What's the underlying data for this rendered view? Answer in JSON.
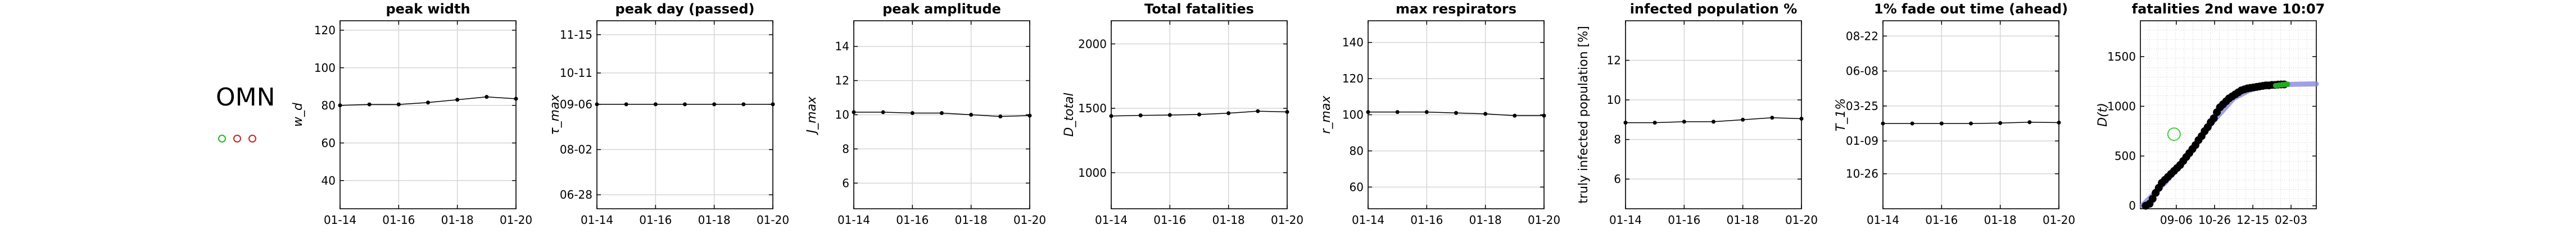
{
  "country": {
    "label": "OMN"
  },
  "indicator_dots": [
    {
      "color": "#22bb22"
    },
    {
      "color": "#cc2222"
    },
    {
      "color": "#cc2222"
    }
  ],
  "chart_data": [
    {
      "type": "line",
      "title": "peak width",
      "ylabel": "w_d",
      "x_ticks": [
        "01-14",
        "01-16",
        "01-18",
        "01-20"
      ],
      "x": [
        0,
        1,
        2,
        3,
        4,
        5,
        6
      ],
      "values": [
        80,
        80.5,
        80.5,
        81.5,
        83,
        84.5,
        83.5
      ],
      "ylim": [
        25,
        125
      ],
      "y_ticks": [
        {
          "v": 40,
          "label": "40"
        },
        {
          "v": 60,
          "label": "60"
        },
        {
          "v": 80,
          "label": "80"
        },
        {
          "v": 100,
          "label": "100"
        },
        {
          "v": 120,
          "label": "120"
        }
      ],
      "grid": true
    },
    {
      "type": "line",
      "title": "peak day (passed)",
      "ylabel": "τ_max",
      "x_ticks": [
        "01-14",
        "01-16",
        "01-18",
        "01-20"
      ],
      "x": [
        0,
        1,
        2,
        3,
        4,
        5,
        6
      ],
      "values": [
        2,
        2,
        2,
        2,
        2,
        2,
        2
      ],
      "ylim": [
        -13,
        14
      ],
      "y_ticks": [
        {
          "v": -11,
          "label": "06-28"
        },
        {
          "v": -4.5,
          "label": "08-02"
        },
        {
          "v": 2,
          "label": "09-06"
        },
        {
          "v": 6.5,
          "label": "10-11"
        },
        {
          "v": 12,
          "label": "11-15"
        }
      ],
      "grid": true
    },
    {
      "type": "line",
      "title": "peak amplitude",
      "ylabel": "J_max",
      "x_ticks": [
        "01-14",
        "01-16",
        "01-18",
        "01-20"
      ],
      "x": [
        0,
        1,
        2,
        3,
        4,
        5,
        6
      ],
      "values": [
        10.15,
        10.15,
        10.1,
        10.1,
        10.0,
        9.9,
        9.95
      ],
      "ylim": [
        4.5,
        15.5
      ],
      "y_ticks": [
        {
          "v": 6,
          "label": "6"
        },
        {
          "v": 8,
          "label": "8"
        },
        {
          "v": 10,
          "label": "10"
        },
        {
          "v": 12,
          "label": "12"
        },
        {
          "v": 14,
          "label": "14"
        }
      ],
      "grid": true
    },
    {
      "type": "line",
      "title": "Total fatalities",
      "ylabel": "D_total",
      "x_ticks": [
        "01-14",
        "01-16",
        "01-18",
        "01-20"
      ],
      "x": [
        0,
        1,
        2,
        3,
        4,
        5,
        6
      ],
      "values": [
        1440,
        1445,
        1448,
        1452,
        1462,
        1478,
        1472
      ],
      "ylim": [
        720,
        2180
      ],
      "y_ticks": [
        {
          "v": 1000,
          "label": "1000"
        },
        {
          "v": 1500,
          "label": "1500"
        },
        {
          "v": 2000,
          "label": "2000"
        }
      ],
      "grid": true
    },
    {
      "type": "line",
      "title": "max respirators",
      "ylabel": "r_max",
      "x_ticks": [
        "01-14",
        "01-16",
        "01-18",
        "01-20"
      ],
      "x": [
        0,
        1,
        2,
        3,
        4,
        5,
        6
      ],
      "values": [
        101.5,
        101.5,
        101.5,
        101,
        100.5,
        99.5,
        99.5
      ],
      "ylim": [
        48,
        152
      ],
      "y_ticks": [
        {
          "v": 60,
          "label": "60"
        },
        {
          "v": 80,
          "label": "80"
        },
        {
          "v": 100,
          "label": "100"
        },
        {
          "v": 120,
          "label": "120"
        },
        {
          "v": 140,
          "label": "140"
        }
      ],
      "grid": true
    },
    {
      "type": "line",
      "title": "infected population %",
      "ylabel": "truly infected population [%]",
      "x_ticks": [
        "01-14",
        "01-16",
        "01-18",
        "01-20"
      ],
      "x": [
        0,
        1,
        2,
        3,
        4,
        5,
        6
      ],
      "values": [
        8.85,
        8.85,
        8.9,
        8.9,
        9.0,
        9.1,
        9.05
      ],
      "ylim": [
        4.5,
        14
      ],
      "y_ticks": [
        {
          "v": 6,
          "label": "6"
        },
        {
          "v": 8,
          "label": "8"
        },
        {
          "v": 10,
          "label": "10"
        },
        {
          "v": 12,
          "label": "12"
        }
      ],
      "grid": true
    },
    {
      "type": "line",
      "title": "1% fade out time (ahead)",
      "ylabel": "T_1%",
      "x_ticks": [
        "01-14",
        "01-16",
        "01-18",
        "01-20"
      ],
      "x": [
        0,
        1,
        2,
        3,
        4,
        5,
        6
      ],
      "values": [
        -1.5,
        -1.5,
        -1.5,
        -1.5,
        -1.4,
        -1.2,
        -1.3
      ],
      "ylim": [
        -21,
        22
      ],
      "y_ticks": [
        {
          "v": -13,
          "label": "10-26"
        },
        {
          "v": -5.5,
          "label": "01-09"
        },
        {
          "v": 2.5,
          "label": "03-25"
        },
        {
          "v": 10.5,
          "label": "06-08"
        },
        {
          "v": 18.5,
          "label": "08-22"
        }
      ],
      "grid": true
    },
    {
      "type": "scatter",
      "title": "fatalities 2nd wave 10:07",
      "ylabel": "D(t)",
      "x_ticks": [
        "09-06",
        "10-26",
        "12-15",
        "02-03"
      ],
      "x_tick_days": [
        75,
        125,
        175,
        225
      ],
      "xlim": [
        28,
        258
      ],
      "ylim": [
        -30,
        1860
      ],
      "y_ticks": [
        {
          "v": 0,
          "label": "0"
        },
        {
          "v": 500,
          "label": "500"
        },
        {
          "v": 1000,
          "label": "1000"
        },
        {
          "v": 1500,
          "label": "1500"
        }
      ],
      "observed": {
        "x": [
          35,
          40,
          44,
          48,
          52,
          56,
          60,
          64,
          68,
          72,
          76,
          80,
          84,
          88,
          92,
          96,
          100,
          104,
          108,
          112,
          116,
          120,
          124,
          128,
          132,
          136,
          140,
          144,
          148,
          152,
          156,
          160,
          164,
          168,
          172,
          176,
          180,
          184,
          188,
          192,
          196,
          200,
          204,
          208,
          212,
          216
        ],
        "values": [
          0,
          20,
          70,
          130,
          180,
          230,
          260,
          290,
          320,
          350,
          380,
          410,
          450,
          490,
          530,
          570,
          610,
          660,
          700,
          750,
          790,
          840,
          880,
          940,
          990,
          1020,
          1050,
          1080,
          1100,
          1120,
          1140,
          1160,
          1170,
          1180,
          1185,
          1190,
          1195,
          1200,
          1205,
          1210,
          1210,
          1215,
          1215,
          1218,
          1220,
          1220
        ]
      },
      "recent": {
        "x": [
          205,
          209,
          213,
          217,
          220
        ],
        "values": [
          1208,
          1212,
          1216,
          1220,
          1222
        ]
      },
      "fit": {
        "x": [
          30,
          60,
          90,
          120,
          150,
          170,
          185,
          200,
          215,
          230,
          245,
          258
        ],
        "values": [
          0,
          230,
          500,
          820,
          1080,
          1160,
          1195,
          1210,
          1218,
          1222,
          1224,
          1225
        ]
      },
      "marker": {
        "x": 72,
        "value": 720,
        "color": "#44cc44"
      },
      "colors": {
        "observed": "#000000",
        "recent": "#22aa22",
        "fit": "#8888dd",
        "grid": "#c8c8c8"
      },
      "grid": true
    }
  ]
}
